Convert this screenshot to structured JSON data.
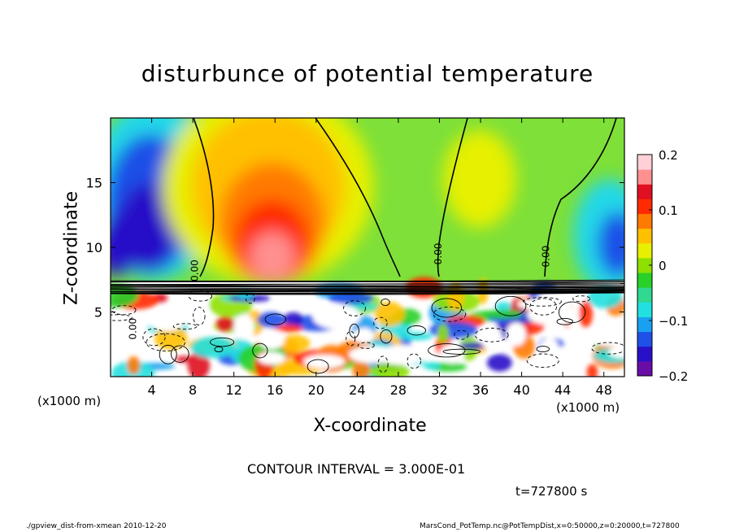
{
  "title": "disturbunce of potential temperature",
  "footer": {
    "left": "./gpview_dist-from-xmean  2010-12-20",
    "right": "MarsCond_PotTemp.nc@PotTempDist,x=0:50000,z=0:20000,t=727800"
  },
  "contour_note": "CONTOUR INTERVAL = 3.000E-01",
  "time_label": "t=727800 s",
  "chart_data": {
    "type": "heatmap",
    "title": "disturbunce of potential temperature",
    "xlabel": "X-coordinate",
    "ylabel": "Z-coordinate",
    "x_unit": "(x1000 m)",
    "x_ticks": [
      4,
      8,
      12,
      16,
      20,
      24,
      28,
      32,
      36,
      40,
      44,
      48
    ],
    "x_tick_labels": [
      "4",
      "8",
      "12",
      "16",
      "20",
      "24",
      "28",
      "32",
      "36",
      "40",
      "44",
      "48"
    ],
    "y_ticks": [
      5,
      10,
      15
    ],
    "y_tick_labels": [
      "5",
      "10",
      "15"
    ],
    "xlim": [
      0,
      50
    ],
    "ylim": [
      0,
      20
    ],
    "colorbar": {
      "range": [
        -0.2,
        0.2
      ],
      "ticks": [
        0.2,
        0.1,
        0,
        -0.1,
        -0.2
      ],
      "tick_labels": [
        "0.2",
        "0.1",
        "0",
        "−0.1",
        "−0.2"
      ],
      "colors": [
        "#6a0da8",
        "#2810c8",
        "#1f50e8",
        "#1aa0f0",
        "#22e0e0",
        "#30d890",
        "#28d028",
        "#8ee000",
        "#e6f000",
        "#ffc000",
        "#ff7a00",
        "#ff2a00",
        "#e01020",
        "#ff9090",
        "#ffd0d8"
      ]
    },
    "upper_features": [
      {
        "kind": "negative",
        "x": 5,
        "z": 15,
        "value": -0.18
      },
      {
        "kind": "positive",
        "x": 16,
        "z": 11,
        "value": 0.18
      },
      {
        "kind": "weak-negative",
        "x": 33,
        "z": 16,
        "value": 0.03
      },
      {
        "kind": "weak-positive",
        "x": 38.5,
        "z": 14.5,
        "value": 0.08
      },
      {
        "kind": "negative",
        "x": 49,
        "z": 12,
        "value": -0.1
      }
    ],
    "zero_contour_labels": [
      {
        "text": "0.00",
        "x": 8.5,
        "z": 8.2
      },
      {
        "text": "0.00",
        "x": 32.2,
        "z": 9.5
      },
      {
        "text": "0.00",
        "x": 42.7,
        "z": 9.3
      },
      {
        "text": "0.00",
        "x": 2.5,
        "z": 3.7
      }
    ]
  }
}
